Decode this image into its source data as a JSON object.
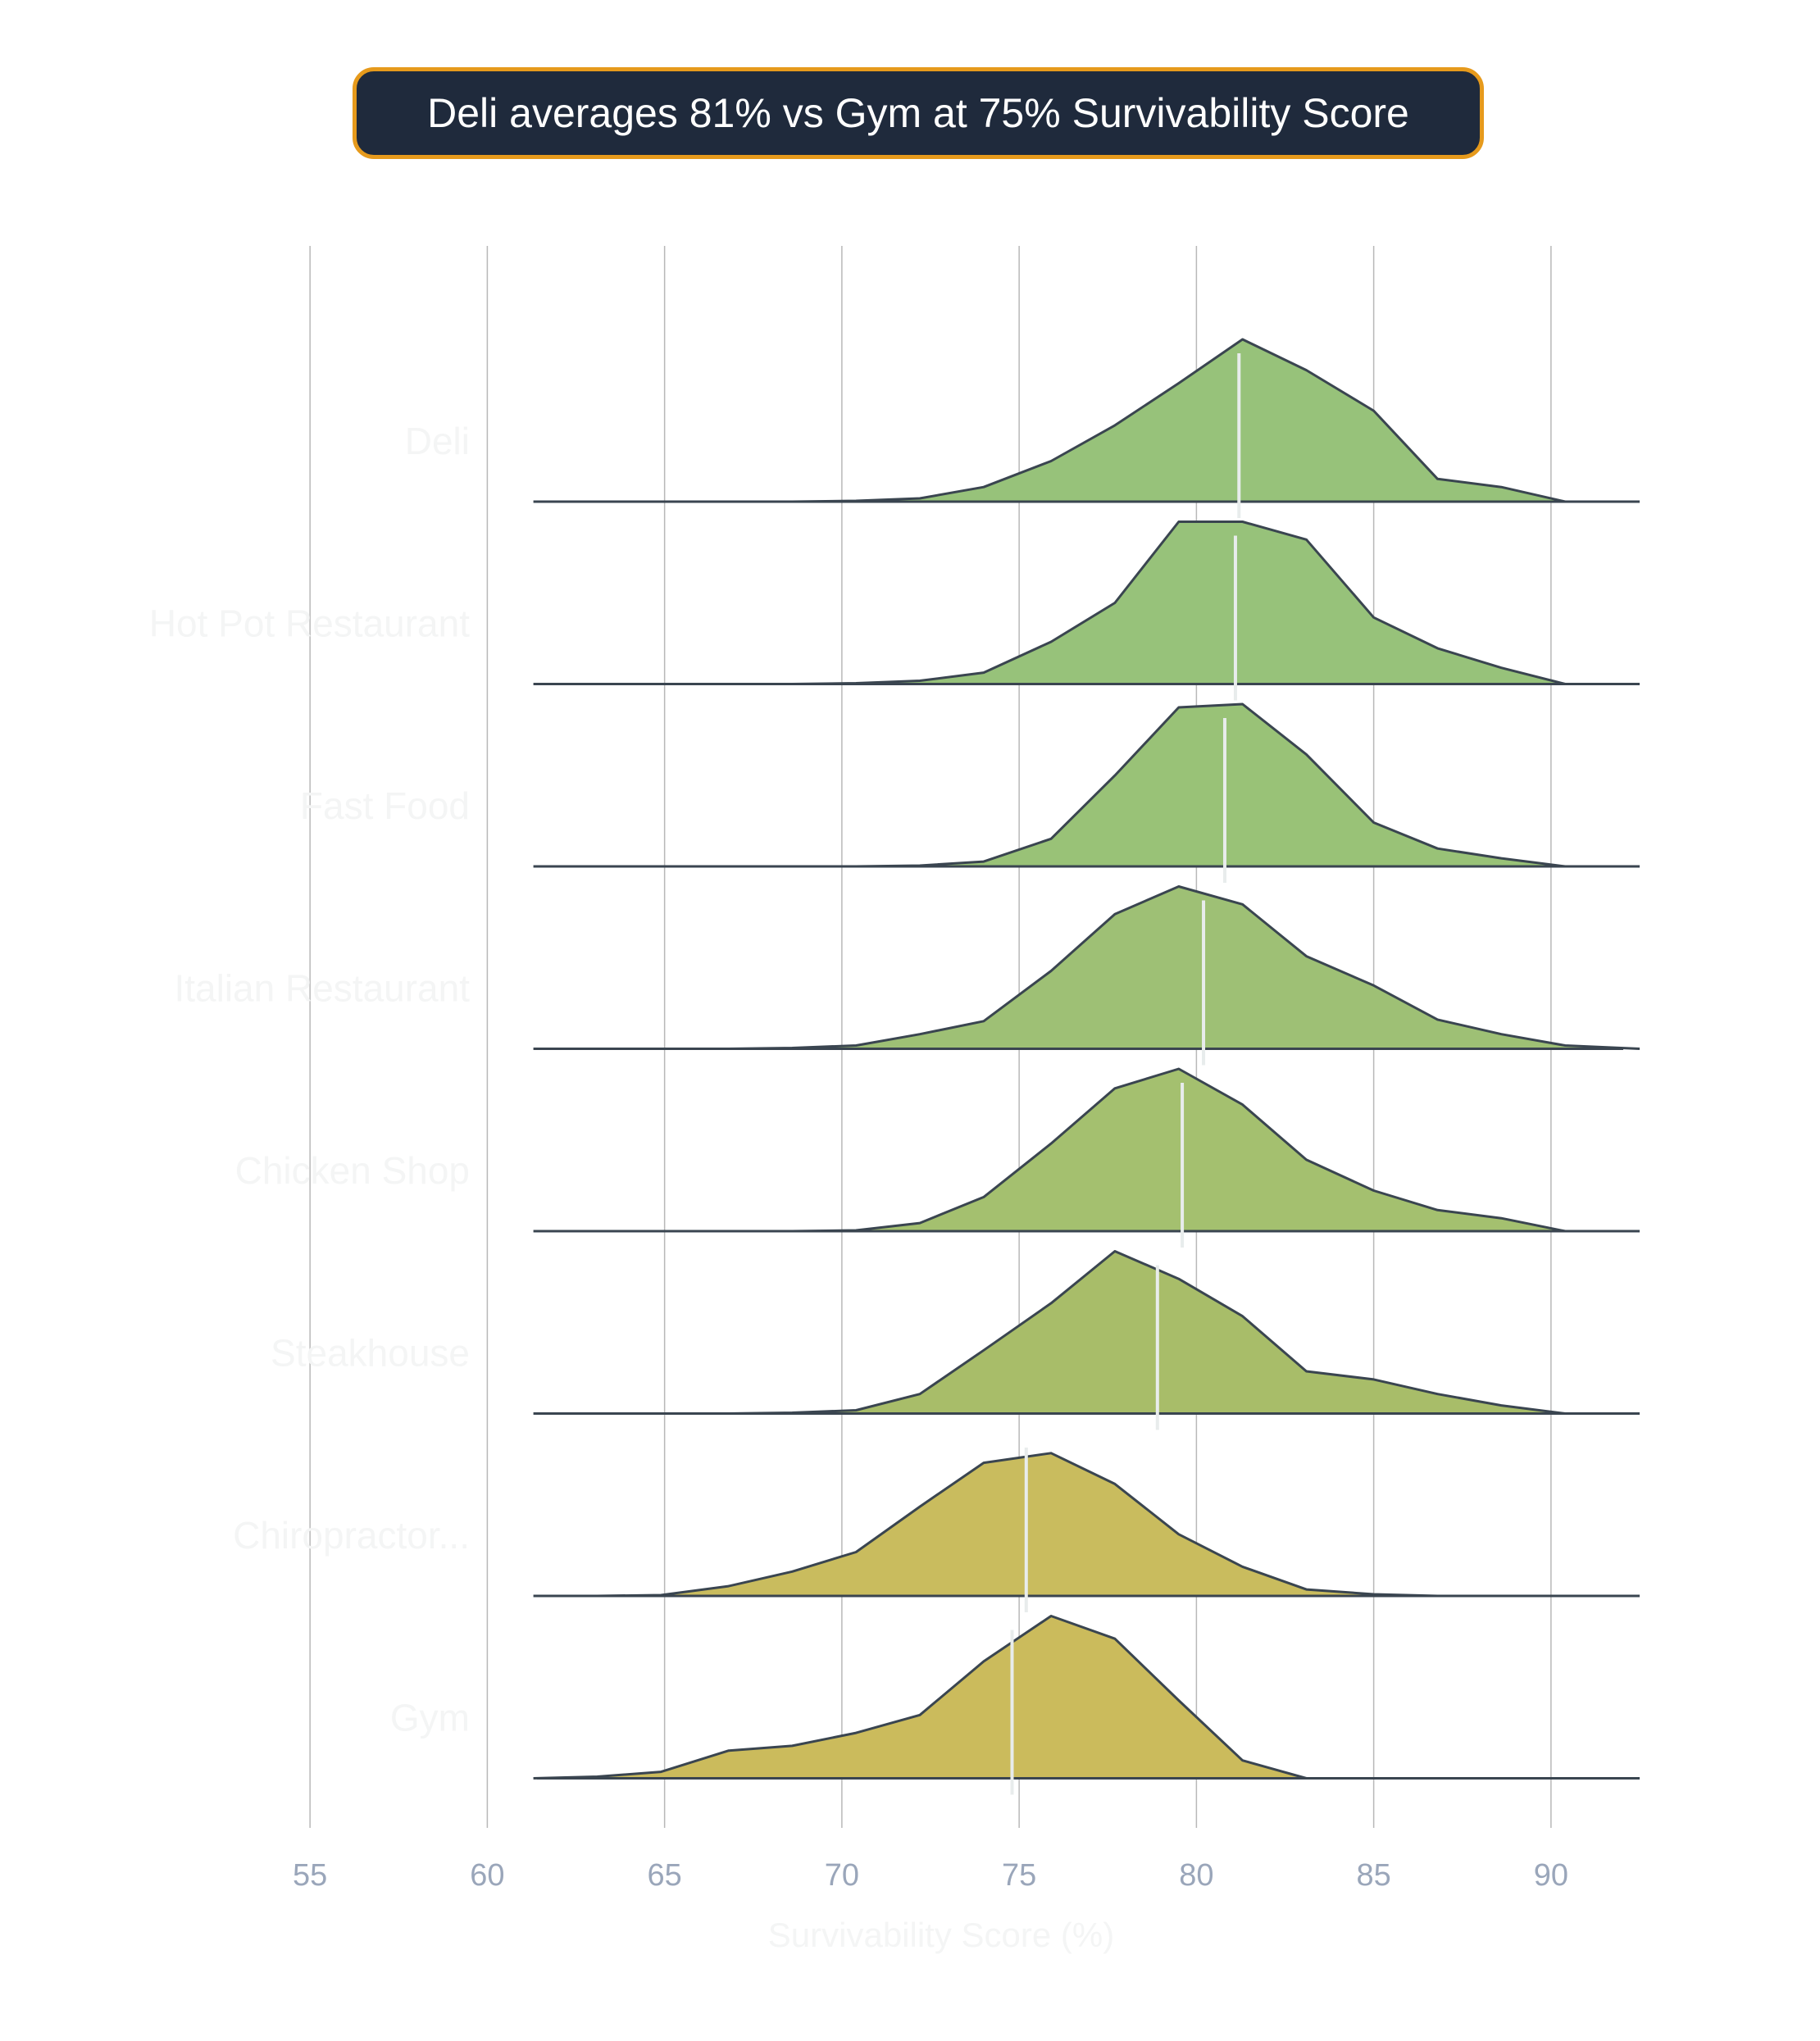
{
  "title": "Deli averages 81% vs Gym at 75% Survivability Score",
  "colors": {
    "title_bg": "#1f2a3c",
    "title_border": "#e69a1c",
    "outline": "#3a4550",
    "mean_line": "#e8ecec",
    "grid": "#b8b8b8",
    "tick_label": "#9aa6ba",
    "category_label": "#f4f5f5"
  },
  "chart_data": {
    "type": "ridgeline",
    "xlabel": "Survivability Score (%)",
    "xlim": [
      52.8,
      92.5
    ],
    "xticks": [
      55,
      60,
      65,
      70,
      75,
      80,
      85,
      90
    ],
    "grid": true,
    "x_grid": [
      61.3,
      63.1,
      64.9,
      66.8,
      68.6,
      70.4,
      72.2,
      74.0,
      75.9,
      77.7,
      79.5,
      81.3,
      83.1,
      85.0,
      86.8,
      88.6,
      90.4,
      92.5
    ],
    "series": [
      {
        "name": "Deli",
        "mean": 81.2,
        "color": "#97c27a",
        "density": [
          0,
          0,
          0,
          0,
          0,
          0.005,
          0.02,
          0.09,
          0.25,
          0.47,
          0.73,
          1.0,
          0.81,
          0.56,
          0.14,
          0.09,
          0,
          0
        ]
      },
      {
        "name": "Hot Pot Restaurant",
        "mean": 81.1,
        "color": "#97c27a",
        "density": [
          0,
          0,
          0,
          0,
          0,
          0.005,
          0.02,
          0.07,
          0.26,
          0.5,
          1.0,
          1.0,
          0.89,
          0.41,
          0.22,
          0.1,
          0,
          0
        ]
      },
      {
        "name": "Fast Food",
        "mean": 80.8,
        "color": "#99c277",
        "density": [
          0,
          0,
          0,
          0,
          0,
          0,
          0.005,
          0.03,
          0.17,
          0.56,
          0.98,
          1.0,
          0.69,
          0.27,
          0.11,
          0.05,
          0,
          0
        ]
      },
      {
        "name": "Italian Restaurant",
        "mean": 80.2,
        "color": "#9ec075",
        "density": [
          0,
          0,
          0,
          0,
          0.005,
          0.02,
          0.09,
          0.17,
          0.48,
          0.83,
          1.0,
          0.89,
          0.57,
          0.39,
          0.18,
          0.09,
          0.02,
          0
        ]
      },
      {
        "name": "Chicken Shop",
        "mean": 79.6,
        "color": "#a4c06f",
        "density": [
          0,
          0,
          0,
          0,
          0,
          0.005,
          0.05,
          0.21,
          0.54,
          0.88,
          1.0,
          0.78,
          0.44,
          0.25,
          0.13,
          0.08,
          0,
          0
        ]
      },
      {
        "name": "Steakhouse",
        "mean": 78.9,
        "color": "#a8bd69",
        "density": [
          0,
          0,
          0,
          0,
          0.005,
          0.02,
          0.12,
          0.39,
          0.68,
          1.0,
          0.83,
          0.6,
          0.26,
          0.21,
          0.12,
          0.05,
          0,
          0
        ]
      },
      {
        "name": "Chiropractor...",
        "mean": 75.2,
        "color": "#c9bc5e",
        "density": [
          0,
          0,
          0.005,
          0.06,
          0.15,
          0.27,
          0.55,
          0.82,
          0.88,
          0.69,
          0.38,
          0.18,
          0.04,
          0.01,
          0,
          0,
          0,
          0
        ]
      },
      {
        "name": "Gym",
        "mean": 74.8,
        "color": "#cbbb5c",
        "density": [
          0,
          0.01,
          0.04,
          0.17,
          0.2,
          0.28,
          0.39,
          0.72,
          1.0,
          0.86,
          0.48,
          0.11,
          0,
          0,
          0,
          0,
          0,
          0
        ]
      }
    ]
  }
}
